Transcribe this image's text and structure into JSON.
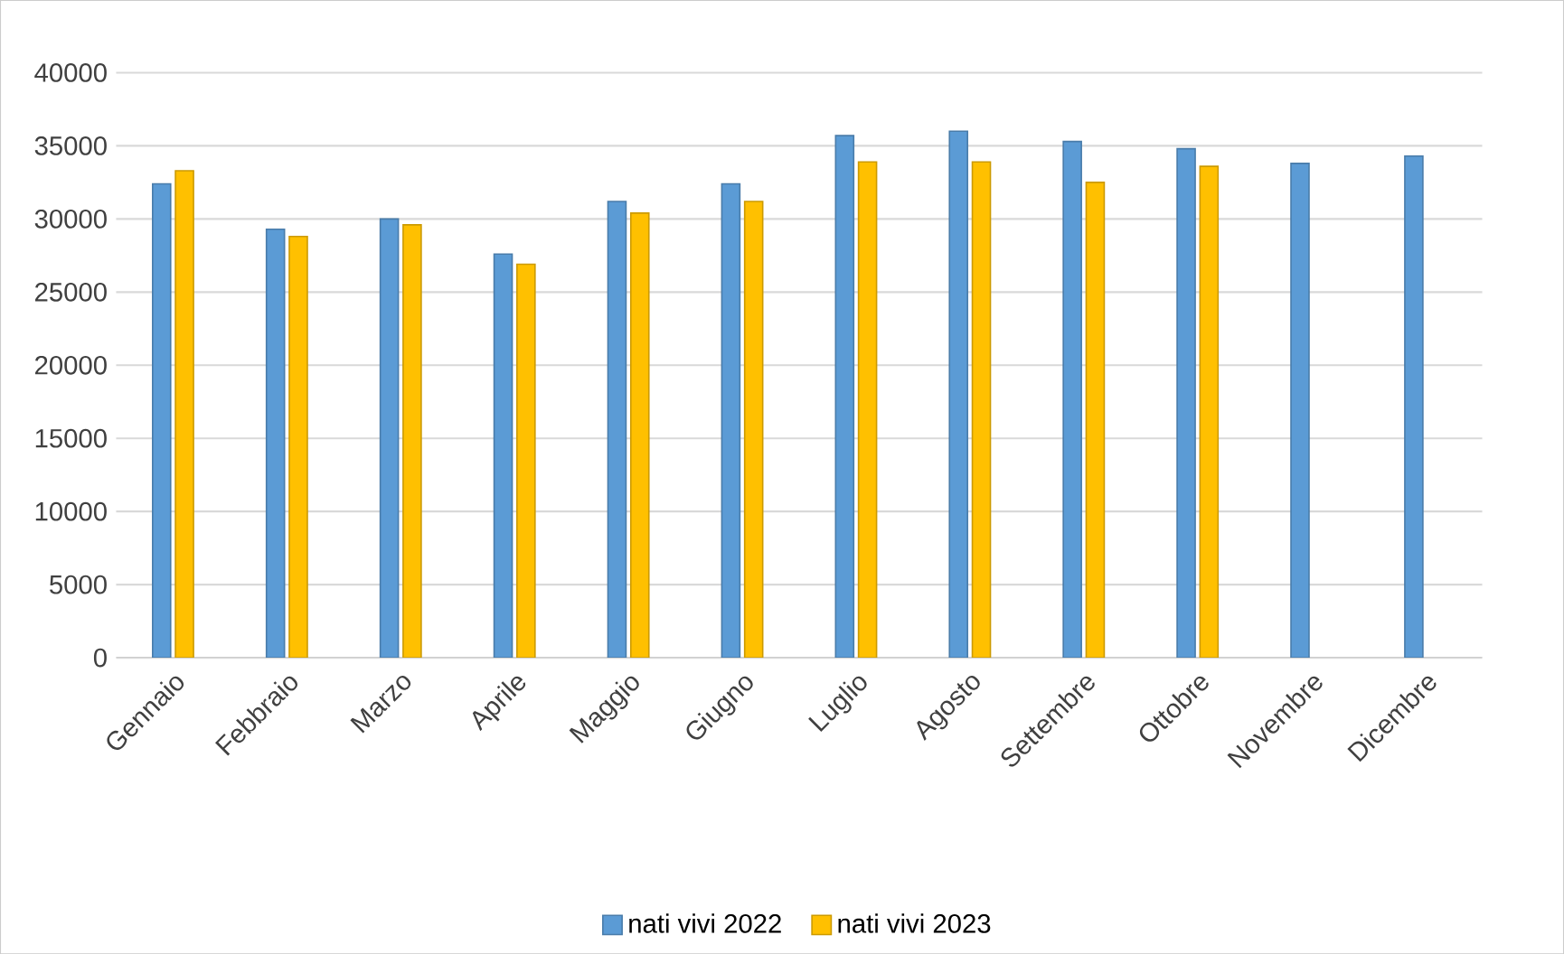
{
  "chart_data": {
    "type": "bar",
    "categories": [
      "Gennaio",
      "Febbraio",
      "Marzo",
      "Aprile",
      "Maggio",
      "Giugno",
      "Luglio",
      "Agosto",
      "Settembre",
      "Ottobre",
      "Novembre",
      "Dicembre"
    ],
    "series": [
      {
        "name": "nati vivi 2022",
        "color": "#5b9bd5",
        "values": [
          32400,
          29300,
          30000,
          27600,
          31200,
          32400,
          35700,
          36000,
          35300,
          34800,
          33800,
          34300
        ]
      },
      {
        "name": "nati vivi 2023",
        "color": "#ffc000",
        "values": [
          33300,
          28800,
          29600,
          26900,
          30400,
          31200,
          33900,
          33900,
          32500,
          33600,
          null,
          null
        ]
      }
    ],
    "ylim": [
      0,
      40000
    ],
    "yticks": [
      0,
      5000,
      10000,
      15000,
      20000,
      25000,
      30000,
      35000,
      40000
    ],
    "grid": "y",
    "legend": "bottom"
  }
}
